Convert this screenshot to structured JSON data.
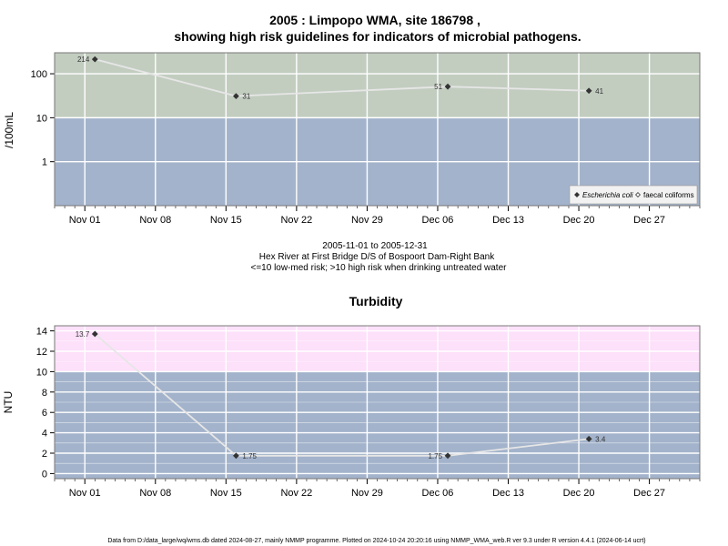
{
  "page": {
    "footer": "Data from D:/data_large/wq/wms.db dated 2024-08-27, mainly NMMP programme. Plotted on 2024-10-24 20:20:16 using NMMP_WMA_web.R ver 9.3 under R version 4.4.1 (2024-06-14 ucrt)"
  },
  "colors": {
    "zone_blue": "#a3b3cb",
    "zone_green": "#c2cdc0",
    "zone_pink": "#fde0fa",
    "grid": "#ffffff",
    "line": "#e6e6e6",
    "point": "#333333"
  },
  "chart_data": [
    {
      "type": "line",
      "title_line1": "2005 : Limpopo WMA, site 186798 ,",
      "title_line2": "showing high risk guidelines for indicators of microbial pathogens.",
      "ylabel": "/100mL",
      "yscale": "log",
      "ylim": [
        0.1,
        300
      ],
      "y_ticks": [
        1,
        10,
        100
      ],
      "y_tick_labels": [
        "1",
        "10",
        "100"
      ],
      "xlim": [
        "2005-10-29",
        "2006-01-01"
      ],
      "x_ticks": [
        "2005-11-01",
        "2005-11-08",
        "2005-11-15",
        "2005-11-22",
        "2005-11-29",
        "2005-12-06",
        "2005-12-13",
        "2005-12-20",
        "2005-12-27"
      ],
      "x_tick_labels": [
        "Nov 01",
        "Nov 08",
        "Nov 15",
        "Nov 22",
        "Nov 29",
        "Dec 06",
        "Dec 13",
        "Dec 20",
        "Dec 27"
      ],
      "zones": [
        {
          "from": 0.1,
          "to": 10,
          "color": "#a3b3cb"
        },
        {
          "from": 10,
          "to": 300,
          "color": "#c2cdc0"
        }
      ],
      "grid": true,
      "legend_position": "bottom-right",
      "legend": [
        {
          "label": "Escherichia coli",
          "marker": "filled-diamond",
          "italic": true
        },
        {
          "label": "faecal coliforms",
          "marker": "open-diamond",
          "italic": false
        }
      ],
      "series": [
        {
          "name": "Escherichia coli",
          "x": [
            "2005-11-02",
            "2005-11-16",
            "2005-12-07",
            "2005-12-21"
          ],
          "values": [
            214,
            31,
            51,
            41
          ],
          "labels": [
            "214",
            "31",
            "51",
            "41"
          ],
          "label_side": [
            "left",
            "right",
            "left",
            "right"
          ]
        }
      ],
      "sub1": "2005-11-01 to 2005-12-31",
      "sub2": "Hex River at First Bridge D/S of Bospoort Dam-Right Bank",
      "sub3": "<=10 low-med risk; >10 high risk when drinking untreated water"
    },
    {
      "type": "line",
      "title": "Turbidity",
      "ylabel": "NTU",
      "yscale": "linear",
      "ylim": [
        -0.5,
        14.5
      ],
      "y_ticks": [
        0,
        2,
        4,
        6,
        8,
        10,
        12,
        14
      ],
      "y_tick_labels": [
        "0",
        "2",
        "4",
        "6",
        "8",
        "10",
        "12",
        "14"
      ],
      "y_minor_grid": [
        1,
        3,
        5,
        7,
        9,
        11,
        13
      ],
      "xlim": [
        "2005-10-29",
        "2006-01-01"
      ],
      "x_ticks": [
        "2005-11-01",
        "2005-11-08",
        "2005-11-15",
        "2005-11-22",
        "2005-11-29",
        "2005-12-06",
        "2005-12-13",
        "2005-12-20",
        "2005-12-27"
      ],
      "x_tick_labels": [
        "Nov 01",
        "Nov 08",
        "Nov 15",
        "Nov 22",
        "Nov 29",
        "Dec 06",
        "Dec 13",
        "Dec 20",
        "Dec 27"
      ],
      "zones": [
        {
          "from": -0.5,
          "to": 10,
          "color": "#a3b3cb"
        },
        {
          "from": 10,
          "to": 14.5,
          "color": "#fde0fa"
        }
      ],
      "grid": true,
      "series": [
        {
          "x": [
            "2005-11-02",
            "2005-11-16",
            "2005-12-07",
            "2005-12-21"
          ],
          "values": [
            13.7,
            1.75,
            1.75,
            3.4
          ],
          "labels": [
            "13.7",
            "1.75",
            "1.75",
            "3.4"
          ],
          "label_side": [
            "left",
            "right",
            "left",
            "right"
          ]
        }
      ]
    }
  ]
}
